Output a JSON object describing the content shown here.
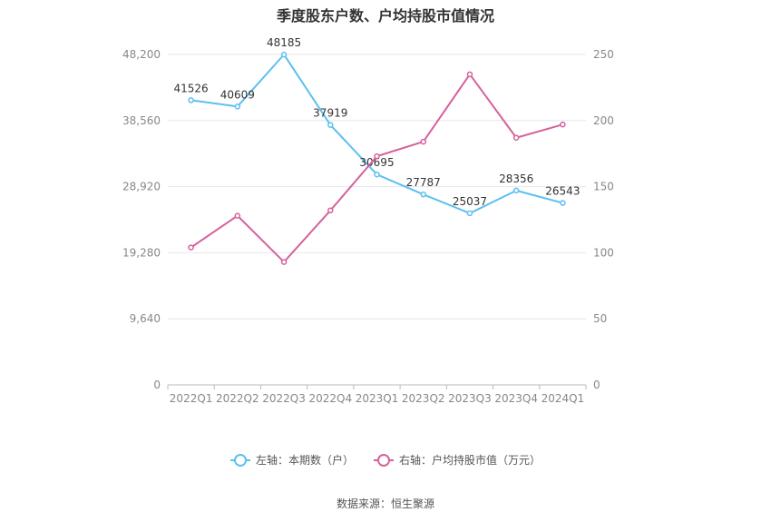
{
  "title": "季度股东户数、户均持股市值情况",
  "legend": {
    "left": "左轴：本期数（户）",
    "right": "右轴：户均持股市值（万元）"
  },
  "source": "数据来源：恒生聚源",
  "colors": {
    "left_series": "#5bc0f0",
    "right_series": "#d6619c",
    "axis_text": "#888888",
    "grid": "#e6e6ee"
  },
  "chart_data": {
    "type": "line",
    "categories": [
      "2022Q1",
      "2022Q2",
      "2022Q3",
      "2022Q4",
      "2023Q1",
      "2023Q2",
      "2023Q3",
      "2023Q4",
      "2024Q1"
    ],
    "series": [
      {
        "name": "左轴：本期数（户）",
        "axis": "left",
        "values": [
          41526,
          40609,
          48185,
          37919,
          30695,
          27787,
          25037,
          28356,
          26543
        ],
        "data_labels": [
          "41526",
          "40609",
          "48185",
          "37919",
          "30695",
          "27787",
          "25037",
          "28356",
          "26543"
        ]
      },
      {
        "name": "右轴：户均持股市值（万元）",
        "axis": "right",
        "values": [
          104,
          128,
          93,
          132,
          173,
          184,
          235,
          187,
          197
        ]
      }
    ],
    "left_axis": {
      "min": 0,
      "max": 48200,
      "ticks": [
        0,
        9640,
        19280,
        28920,
        38560,
        48200
      ],
      "tick_labels": [
        "0",
        "9,640",
        "19,280",
        "28,920",
        "38,560",
        "48,200"
      ]
    },
    "right_axis": {
      "min": 0,
      "max": 250,
      "ticks": [
        0,
        50,
        100,
        150,
        200,
        250
      ],
      "tick_labels": [
        "0",
        "50",
        "100",
        "150",
        "200",
        "250"
      ]
    },
    "grid": true,
    "legend_position": "bottom"
  }
}
